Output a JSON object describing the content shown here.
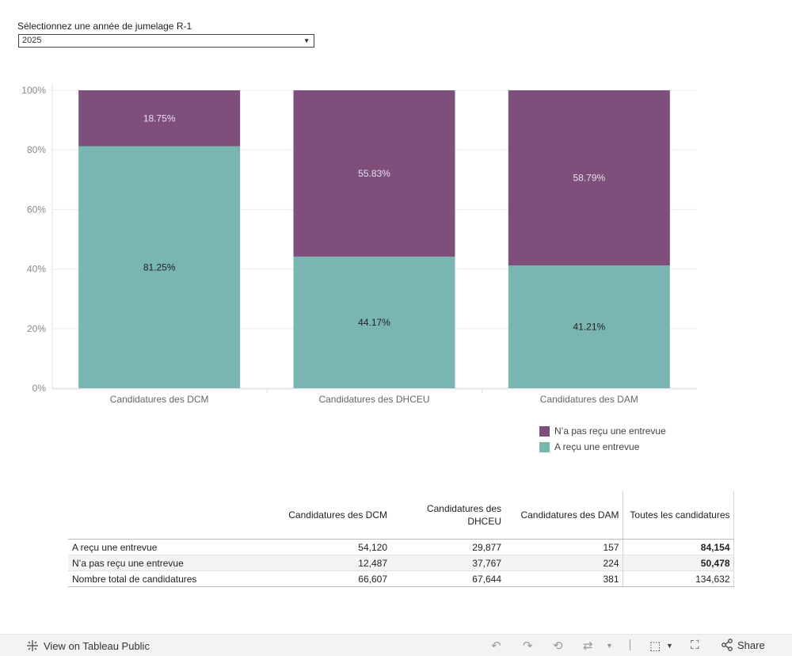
{
  "filter": {
    "label": "Sélectionnez une année de jumelage R-1",
    "selected": "2025"
  },
  "colors": {
    "received": "#79b6b1",
    "not_received": "#7d4f7a"
  },
  "chart_data": {
    "type": "bar",
    "stacked": true,
    "categories": [
      "Candidatures des DCM",
      "Candidatures des DHCEU",
      "Candidatures des DAM"
    ],
    "series": [
      {
        "name": "A reçu une entrevue",
        "values": [
          81.25,
          44.17,
          41.21
        ],
        "labels": [
          "81.25%",
          "44.17%",
          "41.21%"
        ]
      },
      {
        "name": "N’a pas reçu une entrevue",
        "values": [
          18.75,
          55.83,
          58.79
        ],
        "labels": [
          "18.75%",
          "55.83%",
          "58.79%"
        ]
      }
    ],
    "ylim": [
      0,
      100
    ],
    "yticks": [
      0,
      20,
      40,
      60,
      80,
      100
    ],
    "ytick_labels": [
      "0%",
      "20%",
      "40%",
      "60%",
      "80%",
      "100%"
    ],
    "legend_position": "bottom-right",
    "grid": true
  },
  "legend": {
    "items": [
      "N’a pas reçu une entrevue",
      "A reçu une entrevue"
    ]
  },
  "table": {
    "headers": [
      "Candidatures des DCM",
      "Candidatures des DHCEU",
      "Candidatures des DAM",
      "Toutes les candidatures"
    ],
    "rows": [
      {
        "label": "A reçu une entrevue",
        "values": [
          "54,120",
          "29,877",
          "157",
          "84,154"
        ]
      },
      {
        "label": "N’a pas reçu une entrevue",
        "values": [
          "12,487",
          "37,767",
          "224",
          "50,478"
        ]
      },
      {
        "label": "Nombre total de candidatures",
        "values": [
          "66,607",
          "67,644",
          "381",
          "134,632"
        ]
      }
    ]
  },
  "footer": {
    "view_label": "View on Tableau Public",
    "share_label": "Share"
  }
}
